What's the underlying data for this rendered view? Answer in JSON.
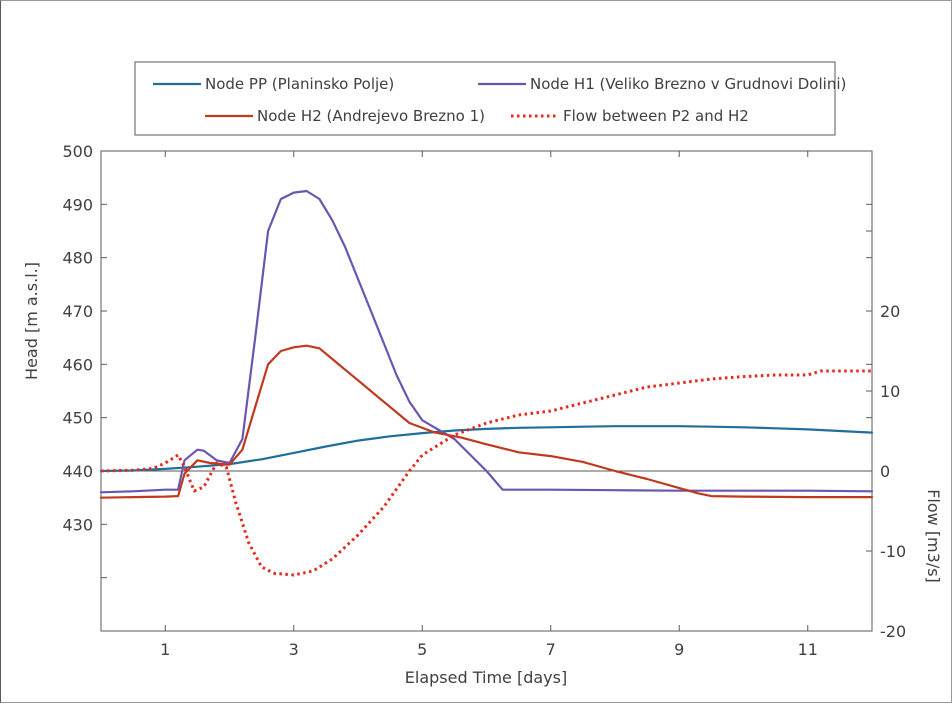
{
  "chart_data": {
    "type": "line",
    "xlabel": "Elapsed Time [days]",
    "ylabel_left": "Head [m a.s.l.]",
    "ylabel_right": "Flow [m3/s]",
    "xlim": [
      0,
      12
    ],
    "ylim_left": [
      410,
      500
    ],
    "ylim_right": [
      -20,
      40
    ],
    "x_ticks": [
      1,
      3,
      5,
      7,
      9,
      11
    ],
    "y_left_ticks": [
      430,
      440,
      450,
      460,
      470,
      480,
      490,
      500
    ],
    "y_right_ticks": [
      -20,
      -10,
      0,
      10,
      20
    ],
    "grid": false,
    "legend_position": "top",
    "series": [
      {
        "name": "Node PP (Planinsko Polje)",
        "axis": "left",
        "style": "solid",
        "color": "#1f6e9c",
        "x": [
          0,
          0.5,
          1.0,
          1.5,
          2.0,
          2.5,
          3.0,
          3.5,
          4.0,
          4.5,
          5.0,
          5.5,
          6.0,
          6.5,
          7.0,
          7.5,
          8.0,
          8.5,
          9.0,
          9.5,
          10.0,
          10.5,
          11.0,
          11.5,
          12.0
        ],
        "y": [
          440.0,
          440.1,
          440.4,
          440.8,
          441.3,
          442.2,
          443.4,
          444.6,
          445.7,
          446.5,
          447.1,
          447.6,
          447.9,
          448.1,
          448.2,
          448.3,
          448.4,
          448.4,
          448.4,
          448.3,
          448.2,
          448.0,
          447.8,
          447.5,
          447.2
        ]
      },
      {
        "name": "Node H1 (Veliko Brezno v Grudnovi Dolini)",
        "axis": "left",
        "style": "solid",
        "color": "#6b55b0",
        "x": [
          0,
          0.5,
          1.0,
          1.2,
          1.3,
          1.5,
          1.6,
          1.8,
          2.0,
          2.2,
          2.4,
          2.6,
          2.8,
          3.0,
          3.2,
          3.4,
          3.6,
          3.8,
          4.0,
          4.2,
          4.4,
          4.6,
          4.8,
          5.0,
          5.5,
          6.0,
          6.25,
          7.0,
          8.0,
          9.0,
          10.0,
          11.0,
          12.0
        ],
        "y": [
          436.0,
          436.2,
          436.5,
          436.5,
          442.0,
          444.0,
          443.8,
          442.0,
          441.5,
          446.0,
          465.0,
          485.0,
          491.0,
          492.2,
          492.5,
          491.0,
          487.0,
          482.0,
          476.0,
          470.0,
          464.0,
          458.0,
          453.0,
          449.5,
          446.0,
          440.0,
          436.5,
          436.5,
          436.4,
          436.3,
          436.3,
          436.3,
          436.2
        ]
      },
      {
        "name": "Node H2 (Andrejevo Brezno 1)",
        "axis": "left",
        "style": "solid",
        "color": "#c0391f",
        "x": [
          0,
          0.5,
          1.0,
          1.2,
          1.3,
          1.5,
          1.7,
          2.0,
          2.2,
          2.4,
          2.6,
          2.8,
          3.0,
          3.2,
          3.4,
          3.6,
          3.8,
          4.0,
          4.4,
          4.8,
          5.2,
          5.6,
          6.0,
          6.5,
          7.0,
          7.5,
          8.0,
          8.5,
          9.0,
          9.3,
          9.5,
          10.0,
          11.0,
          12.0
        ],
        "y": [
          435.0,
          435.1,
          435.2,
          435.3,
          439.5,
          442.0,
          441.5,
          441.2,
          444.0,
          452.0,
          460.0,
          462.5,
          463.2,
          463.5,
          463.0,
          461.0,
          459.0,
          457.0,
          453.0,
          449.0,
          447.2,
          446.3,
          445.0,
          443.5,
          442.8,
          441.7,
          440.0,
          438.5,
          436.8,
          435.8,
          435.3,
          435.2,
          435.1,
          435.1
        ]
      },
      {
        "name": "Flow between P2 and H2",
        "axis": "right",
        "style": "dotted",
        "color": "#e8281c",
        "x": [
          0,
          0.5,
          0.8,
          1.0,
          1.2,
          1.3,
          1.45,
          1.6,
          1.8,
          1.95,
          2.1,
          2.3,
          2.5,
          2.7,
          3.0,
          3.3,
          3.6,
          4.0,
          4.4,
          4.8,
          5.0,
          5.5,
          6.0,
          6.5,
          7.0,
          7.5,
          8.0,
          8.5,
          9.0,
          9.5,
          10.0,
          10.5,
          11.0,
          11.2,
          12.0
        ],
        "y": [
          0.0,
          0.1,
          0.3,
          1.0,
          2.0,
          0.5,
          -2.5,
          -2.0,
          1.0,
          0.5,
          -4.0,
          -9.0,
          -12.0,
          -12.8,
          -13.0,
          -12.5,
          -11.0,
          -8.0,
          -4.5,
          0.0,
          2.0,
          4.5,
          6.0,
          7.0,
          7.5,
          8.5,
          9.5,
          10.5,
          11.0,
          11.5,
          11.8,
          12.0,
          12.0,
          12.5,
          12.5
        ]
      }
    ]
  }
}
